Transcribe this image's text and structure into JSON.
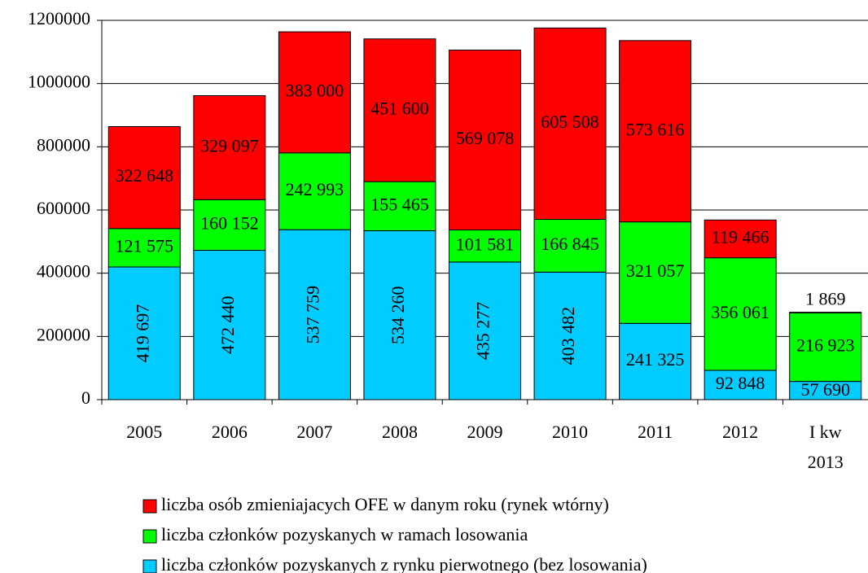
{
  "chart_data": {
    "type": "stacked_bar",
    "categories": [
      "2005",
      "2006",
      "2007",
      "2008",
      "2009",
      "2010",
      "2011",
      "2012",
      "I kw\n2013"
    ],
    "series": [
      {
        "name": "liczba członków pozyskanych z rynku pierwotnego (bez losowania)",
        "color": "#00ccff",
        "values": [
          419697,
          472440,
          537759,
          534260,
          435277,
          403482,
          241325,
          92848,
          57690
        ],
        "value_labels": [
          "419 697",
          "472 440",
          "537 759",
          "534 260",
          "435 277",
          "403 482",
          "241 325",
          "92 848",
          "57 690"
        ]
      },
      {
        "name": "liczba członków pozyskanych w ramach losowania",
        "color": "#00ff00",
        "values": [
          121575,
          160152,
          242993,
          155465,
          101581,
          166845,
          321057,
          356061,
          216923
        ],
        "value_labels": [
          "121 575",
          "160 152",
          "242 993",
          "155 465",
          "101 581",
          "166 845",
          "321 057",
          "356 061",
          "216 923"
        ]
      },
      {
        "name": "liczba osób zmieniajacych OFE w danym roku (rynek wtórny)",
        "color": "#ff0000",
        "values": [
          322648,
          329097,
          383000,
          451600,
          569078,
          605508,
          573616,
          119466,
          1869
        ],
        "value_labels": [
          "322 648",
          "329 097",
          "383 000",
          "451 600",
          "569 078",
          "605 508",
          "573 616",
          "119 466",
          "1 869"
        ]
      }
    ],
    "ylim": [
      0,
      1200000
    ],
    "yticks": [
      0,
      200000,
      400000,
      600000,
      800000,
      1000000,
      1200000
    ],
    "grid": true
  }
}
